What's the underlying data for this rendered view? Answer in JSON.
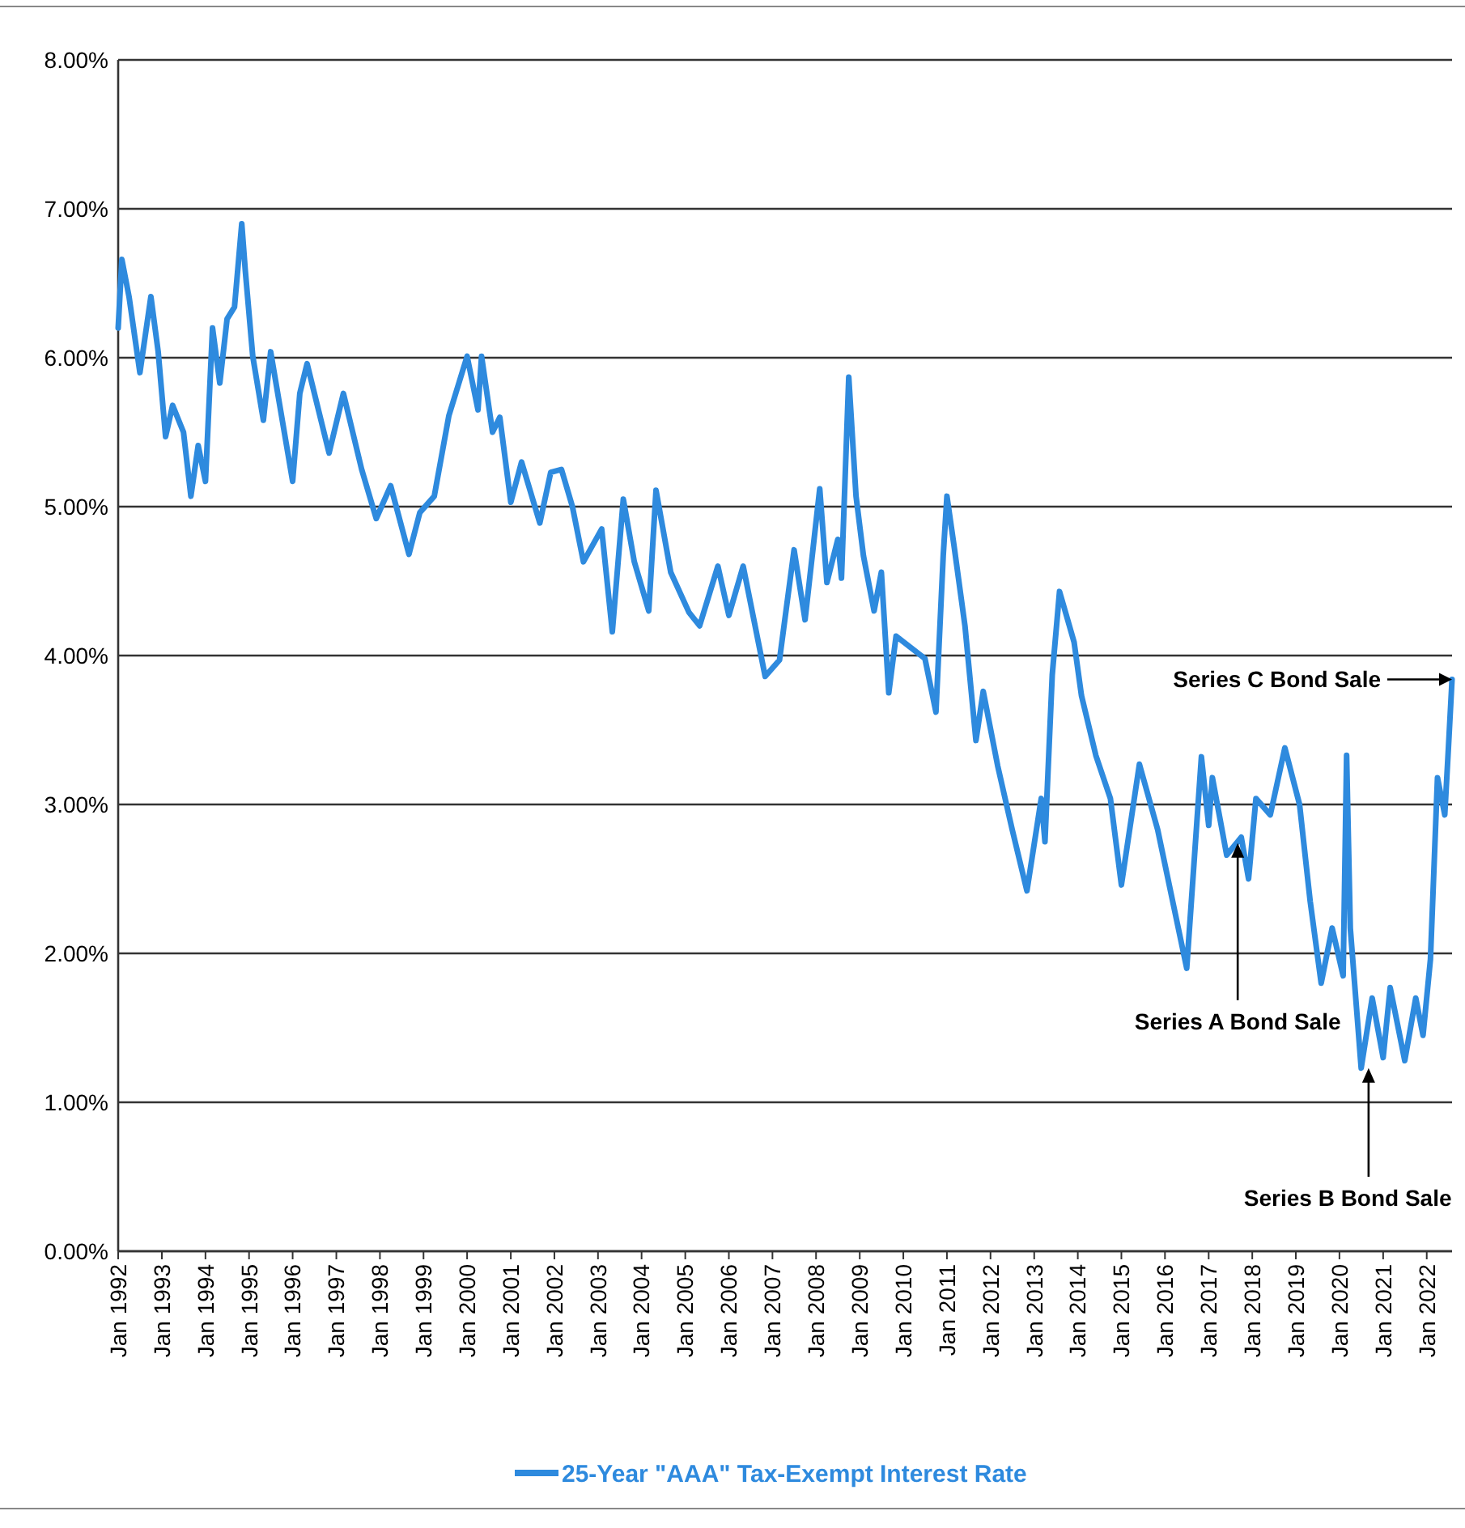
{
  "chart_data": {
    "type": "line",
    "x": [
      "1992-01",
      "1992-02",
      "1992-04",
      "1992-07",
      "1992-10",
      "1992-12",
      "1993-02",
      "1993-04",
      "1993-07",
      "1993-09",
      "1993-11",
      "1994-01",
      "1994-03",
      "1994-05",
      "1994-07",
      "1994-09",
      "1994-11",
      "1994-12",
      "1995-02",
      "1995-05",
      "1995-07",
      "1996-01",
      "1996-03",
      "1996-05",
      "1996-11",
      "1997-03",
      "1997-08",
      "1997-12",
      "1998-04",
      "1998-09",
      "1998-12",
      "1999-04",
      "1999-08",
      "2000-01",
      "2000-04",
      "2000-05",
      "2000-08",
      "2000-10",
      "2001-01",
      "2001-04",
      "2001-09",
      "2001-12",
      "2002-03",
      "2002-06",
      "2002-09",
      "2003-02",
      "2003-05",
      "2003-08",
      "2003-11",
      "2004-03",
      "2004-05",
      "2004-09",
      "2005-02",
      "2005-05",
      "2005-10",
      "2006-01",
      "2006-05",
      "2006-11",
      "2007-03",
      "2007-07",
      "2007-10",
      "2008-02",
      "2008-04",
      "2008-07",
      "2008-08",
      "2008-10",
      "2008-12",
      "2009-02",
      "2009-05",
      "2009-07",
      "2009-09",
      "2009-11",
      "2010-07",
      "2010-10",
      "2010-12",
      "2011-01",
      "2011-03",
      "2011-06",
      "2011-09",
      "2011-11",
      "2012-03",
      "2012-07",
      "2012-11",
      "2013-03",
      "2013-04",
      "2013-06",
      "2013-08",
      "2013-12",
      "2014-02",
      "2014-06",
      "2014-10",
      "2015-01",
      "2015-06",
      "2015-11",
      "2016-07",
      "2016-11",
      "2017-01",
      "2017-02",
      "2017-06",
      "2017-10",
      "2017-12",
      "2018-02",
      "2018-06",
      "2018-10",
      "2019-02",
      "2019-05",
      "2019-08",
      "2019-11",
      "2020-02",
      "2020-03",
      "2020-04",
      "2020-07",
      "2020-10",
      "2021-01",
      "2021-03",
      "2021-07",
      "2021-10",
      "2021-12",
      "2022-02",
      "2022-04",
      "2022-06",
      "2022-07",
      "2022-08"
    ],
    "series": [
      {
        "name": "25-Year \"AAA\" Tax-Exempt Interest Rate",
        "color": "#2e8ade",
        "values": [
          6.2,
          6.66,
          6.41,
          5.9,
          6.41,
          6.04,
          5.47,
          5.68,
          5.5,
          5.07,
          5.41,
          5.17,
          6.2,
          5.83,
          6.26,
          6.34,
          6.9,
          6.58,
          6.01,
          5.58,
          6.04,
          5.17,
          5.76,
          5.96,
          5.36,
          5.76,
          5.25,
          4.92,
          5.14,
          4.68,
          4.96,
          5.07,
          5.61,
          6.01,
          5.65,
          6.01,
          5.5,
          5.6,
          5.03,
          5.3,
          4.89,
          5.23,
          5.25,
          5.0,
          4.63,
          4.85,
          4.16,
          5.05,
          4.63,
          4.3,
          5.11,
          4.56,
          4.29,
          4.2,
          4.6,
          4.27,
          4.6,
          3.86,
          3.97,
          4.71,
          4.24,
          5.12,
          4.49,
          4.78,
          4.52,
          5.87,
          5.07,
          4.67,
          4.3,
          4.56,
          3.75,
          4.13,
          3.98,
          3.62,
          4.67,
          5.07,
          4.74,
          4.2,
          3.43,
          3.76,
          3.26,
          2.83,
          2.42,
          3.04,
          2.75,
          3.87,
          4.43,
          4.09,
          3.73,
          3.33,
          3.04,
          2.46,
          3.27,
          2.83,
          1.9,
          3.32,
          2.86,
          3.18,
          2.66,
          2.78,
          2.5,
          3.04,
          2.93,
          3.38,
          3.0,
          2.35,
          1.8,
          2.17,
          1.85,
          3.33,
          2.17,
          1.23,
          1.7,
          1.3,
          1.77,
          1.28,
          1.7,
          1.45,
          1.96,
          3.18,
          2.93,
          3.37,
          3.84
        ]
      }
    ],
    "xlim": [
      "1992-01",
      "2022-08"
    ],
    "xticks": [
      {
        "value": "1992-01",
        "label": "Jan 1992"
      },
      {
        "value": "1993-01",
        "label": "Jan 1993"
      },
      {
        "value": "1994-01",
        "label": "Jan 1994"
      },
      {
        "value": "1995-01",
        "label": "Jan 1995"
      },
      {
        "value": "1996-01",
        "label": "Jan 1996"
      },
      {
        "value": "1997-01",
        "label": "Jan 1997"
      },
      {
        "value": "1998-01",
        "label": "Jan 1998"
      },
      {
        "value": "1999-01",
        "label": "Jan 1999"
      },
      {
        "value": "2000-01",
        "label": "Jan 2000"
      },
      {
        "value": "2001-01",
        "label": "Jan 2001"
      },
      {
        "value": "2002-01",
        "label": "Jan 2002"
      },
      {
        "value": "2003-01",
        "label": "Jan 2003"
      },
      {
        "value": "2004-01",
        "label": "Jan 2004"
      },
      {
        "value": "2005-01",
        "label": "Jan 2005"
      },
      {
        "value": "2006-01",
        "label": "Jan 2006"
      },
      {
        "value": "2007-01",
        "label": "Jan 2007"
      },
      {
        "value": "2008-01",
        "label": "Jan 2008"
      },
      {
        "value": "2009-01",
        "label": "Jan 2009"
      },
      {
        "value": "2010-01",
        "label": "Jan 2010"
      },
      {
        "value": "2011-01",
        "label": "Jan 2011"
      },
      {
        "value": "2012-01",
        "label": "Jan 2012"
      },
      {
        "value": "2013-01",
        "label": "Jan 2013"
      },
      {
        "value": "2014-01",
        "label": "Jan 2014"
      },
      {
        "value": "2015-01",
        "label": "Jan 2015"
      },
      {
        "value": "2016-01",
        "label": "Jan 2016"
      },
      {
        "value": "2017-01",
        "label": "Jan 2017"
      },
      {
        "value": "2018-01",
        "label": "Jan 2018"
      },
      {
        "value": "2019-01",
        "label": "Jan 2019"
      },
      {
        "value": "2020-01",
        "label": "Jan 2020"
      },
      {
        "value": "2021-01",
        "label": "Jan 2021"
      },
      {
        "value": "2022-01",
        "label": "Jan 2022"
      }
    ],
    "ylim": [
      0,
      8
    ],
    "yticks": [
      {
        "value": 0,
        "label": "0.00%"
      },
      {
        "value": 1,
        "label": "1.00%"
      },
      {
        "value": 2,
        "label": "2.00%"
      },
      {
        "value": 3,
        "label": "3.00%"
      },
      {
        "value": 4,
        "label": "4.00%"
      },
      {
        "value": 5,
        "label": "5.00%"
      },
      {
        "value": 6,
        "label": "6.00%"
      },
      {
        "value": 7,
        "label": "7.00%"
      },
      {
        "value": 8,
        "label": "8.00%"
      }
    ],
    "grid": "y",
    "legend": "bottom",
    "marker": "none",
    "line_style": "solid",
    "annotations": [
      {
        "text": "Series A Bond Sale",
        "x": "2017-09",
        "y": 2.74
      },
      {
        "text": "Series B Bond Sale",
        "x": "2020-09",
        "y": 1.23
      },
      {
        "text": "Series C Bond Sale",
        "x": "2022-08",
        "y": 3.84
      }
    ]
  }
}
